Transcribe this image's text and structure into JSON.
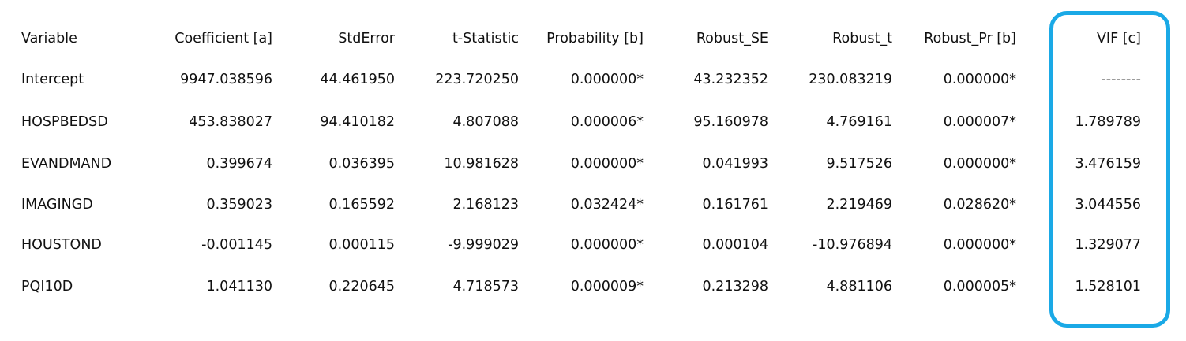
{
  "table": {
    "headers": [
      "Variable",
      "Coefficient [a]",
      "StdError",
      "t-Statistic",
      "Probability [b]",
      "Robust_SE",
      "Robust_t",
      "Robust_Pr [b]",
      "VIF [c]"
    ],
    "rows": [
      [
        "Intercept",
        "9947.038596",
        "44.461950",
        "223.720250",
        "0.000000*",
        "43.232352",
        "230.083219",
        "0.000000*",
        "--------"
      ],
      [
        "HOSPBEDSD",
        "453.838027",
        "94.410182",
        "4.807088",
        "0.000006*",
        "95.160978",
        "4.769161",
        "0.000007*",
        "1.789789"
      ],
      [
        "EVANDMAND",
        "0.399674",
        "0.036395",
        "10.981628",
        "0.000000*",
        "0.041993",
        "9.517526",
        "0.000000*",
        "3.476159"
      ],
      [
        "IMAGINGD",
        "0.359023",
        "0.165592",
        "2.168123",
        "0.032424*",
        "0.161761",
        "2.219469",
        "0.028620*",
        "3.044556"
      ],
      [
        "HOUSTOND",
        "-0.001145",
        "0.000115",
        "-9.999029",
        "0.000000*",
        "0.000104",
        "-10.976894",
        "0.000000*",
        "1.329077"
      ],
      [
        "PQI10D",
        "1.041130",
        "0.220645",
        "4.718573",
        "0.000009*",
        "0.213298",
        "4.881106",
        "0.000005*",
        "1.528101"
      ]
    ]
  },
  "highlight": {
    "column": "VIF [c]",
    "color": "#1aa9e6"
  }
}
